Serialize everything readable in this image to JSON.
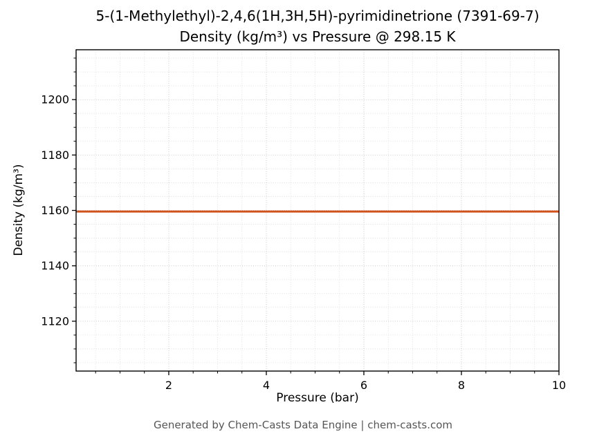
{
  "title_line1": "5-(1-Methylethyl)-2,4,6(1H,3H,5H)-pyrimidinetrione (7391-69-7)",
  "title_line2": "Density (kg/m³) vs Pressure @ 298.15 K",
  "footer": "Generated by Chem-Casts Data Engine | chem-casts.com",
  "chart_data": {
    "type": "line",
    "title": "5-(1-Methylethyl)-2,4,6(1H,3H,5H)-pyrimidinetrione (7391-69-7) Density (kg/m³) vs Pressure @ 298.15 K",
    "xlabel": "Pressure (bar)",
    "ylabel": "Density (kg/m³)",
    "x": [
      0.1,
      1,
      2,
      3,
      4,
      5,
      6,
      7,
      8,
      9,
      10
    ],
    "series": [
      {
        "name": "Density",
        "values": [
          1159.6,
          1159.6,
          1159.6,
          1159.6,
          1159.6,
          1159.6,
          1159.6,
          1159.6,
          1159.6,
          1159.6,
          1159.6
        ]
      }
    ],
    "xlim": [
      0.1,
      10
    ],
    "ylim": [
      1102,
      1218
    ],
    "xticks": [
      2,
      4,
      6,
      8,
      10
    ],
    "yticks": [
      1120,
      1140,
      1160,
      1180,
      1200
    ],
    "x_minor_step": 0.5,
    "y_minor_step": 5,
    "grid": true,
    "legend": "none",
    "line_color": "#d1521d",
    "grid_major_color": "#c2c2c2",
    "grid_minor_color": "#dadada",
    "spine_color": "#000000",
    "tick_label_color": "#000000"
  }
}
